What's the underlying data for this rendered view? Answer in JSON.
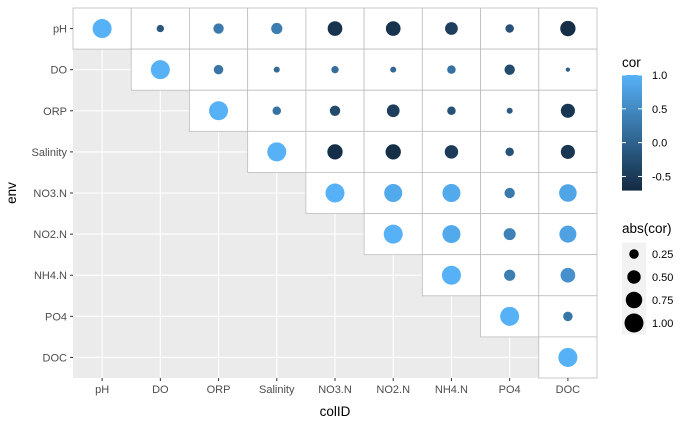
{
  "chart_data": {
    "type": "scatter",
    "xlabel": "colID",
    "ylabel": "env",
    "variables": [
      "pH",
      "DO",
      "ORP",
      "Salinity",
      "NO3.N",
      "NO2.N",
      "NH4.N",
      "PO4",
      "DOC"
    ],
    "cells": [
      {
        "row": "pH",
        "col": "pH",
        "cor": 1.0
      },
      {
        "row": "pH",
        "col": "DO",
        "cor": -0.15
      },
      {
        "row": "pH",
        "col": "ORP",
        "cor": 0.3
      },
      {
        "row": "pH",
        "col": "Salinity",
        "cor": 0.35
      },
      {
        "row": "pH",
        "col": "NO3.N",
        "cor": -0.6
      },
      {
        "row": "pH",
        "col": "NO2.N",
        "cor": -0.6
      },
      {
        "row": "pH",
        "col": "NH4.N",
        "cor": -0.45
      },
      {
        "row": "pH",
        "col": "PO4",
        "cor": -0.2
      },
      {
        "row": "pH",
        "col": "DOC",
        "cor": -0.65
      },
      {
        "row": "DO",
        "col": "DO",
        "cor": 1.0
      },
      {
        "row": "DO",
        "col": "ORP",
        "cor": 0.25
      },
      {
        "row": "DO",
        "col": "Salinity",
        "cor": 0.1
      },
      {
        "row": "DO",
        "col": "NO3.N",
        "cor": 0.15
      },
      {
        "row": "DO",
        "col": "NO2.N",
        "cor": 0.1
      },
      {
        "row": "DO",
        "col": "NH4.N",
        "cor": 0.2
      },
      {
        "row": "DO",
        "col": "PO4",
        "cor": -0.3
      },
      {
        "row": "DO",
        "col": "DOC",
        "cor": -0.05
      },
      {
        "row": "ORP",
        "col": "ORP",
        "cor": 1.0
      },
      {
        "row": "ORP",
        "col": "Salinity",
        "cor": 0.2
      },
      {
        "row": "ORP",
        "col": "NO3.N",
        "cor": -0.3
      },
      {
        "row": "ORP",
        "col": "NO2.N",
        "cor": -0.45
      },
      {
        "row": "ORP",
        "col": "NH4.N",
        "cor": -0.2
      },
      {
        "row": "ORP",
        "col": "PO4",
        "cor": -0.1
      },
      {
        "row": "ORP",
        "col": "DOC",
        "cor": -0.55
      },
      {
        "row": "Salinity",
        "col": "Salinity",
        "cor": 1.0
      },
      {
        "row": "Salinity",
        "col": "NO3.N",
        "cor": -0.65
      },
      {
        "row": "Salinity",
        "col": "NO2.N",
        "cor": -0.65
      },
      {
        "row": "Salinity",
        "col": "NH4.N",
        "cor": -0.5
      },
      {
        "row": "Salinity",
        "col": "PO4",
        "cor": -0.2
      },
      {
        "row": "Salinity",
        "col": "DOC",
        "cor": -0.55
      },
      {
        "row": "NO3.N",
        "col": "NO3.N",
        "cor": 1.0
      },
      {
        "row": "NO3.N",
        "col": "NO2.N",
        "cor": 0.9
      },
      {
        "row": "NO3.N",
        "col": "NH4.N",
        "cor": 0.9
      },
      {
        "row": "NO3.N",
        "col": "PO4",
        "cor": 0.3
      },
      {
        "row": "NO3.N",
        "col": "DOC",
        "cor": 0.85
      },
      {
        "row": "NO2.N",
        "col": "NO2.N",
        "cor": 1.0
      },
      {
        "row": "NO2.N",
        "col": "NH4.N",
        "cor": 0.9
      },
      {
        "row": "NO2.N",
        "col": "PO4",
        "cor": 0.4
      },
      {
        "row": "NO2.N",
        "col": "DOC",
        "cor": 0.8
      },
      {
        "row": "NH4.N",
        "col": "NH4.N",
        "cor": 1.0
      },
      {
        "row": "NH4.N",
        "col": "PO4",
        "cor": 0.35
      },
      {
        "row": "NH4.N",
        "col": "DOC",
        "cor": 0.6
      },
      {
        "row": "PO4",
        "col": "PO4",
        "cor": 1.0
      },
      {
        "row": "PO4",
        "col": "DOC",
        "cor": 0.25
      },
      {
        "row": "DOC",
        "col": "DOC",
        "cor": 1.0
      }
    ],
    "color_scale": {
      "title": "cor",
      "low_color": "#132B43",
      "high_color": "#56B1F7",
      "domain": [
        -0.7,
        1.0
      ],
      "breaks": [
        -0.5,
        0.0,
        0.5,
        1.0
      ],
      "break_labels": [
        "-0.5",
        "0.0",
        "0.5",
        "1.0"
      ]
    },
    "size_scale": {
      "title": "abs(cor)",
      "breaks": [
        0.25,
        0.5,
        0.75,
        1.0
      ],
      "break_labels": [
        "0.25",
        "0.50",
        "0.75",
        "1.00"
      ]
    },
    "panel_background": "#EBEBEB",
    "grid": true
  }
}
